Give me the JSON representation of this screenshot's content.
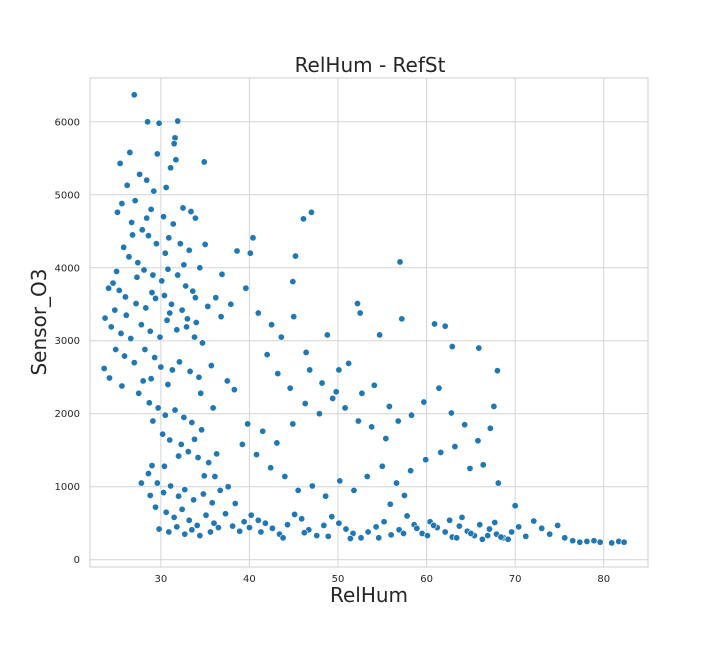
{
  "chart_data": {
    "type": "scatter",
    "title": "RelHum - RefSt",
    "xlabel": "RelHum",
    "ylabel": "Sensor_O3",
    "xlim": [
      22,
      85
    ],
    "ylim": [
      -100,
      6600
    ],
    "xticks": [
      30,
      40,
      50,
      60,
      70,
      80
    ],
    "yticks": [
      0,
      1000,
      2000,
      3000,
      4000,
      5000,
      6000
    ],
    "grid": true,
    "color": "#1f77b4",
    "points": [
      [
        27.0,
        6370
      ],
      [
        28.5,
        6000
      ],
      [
        29.8,
        5980
      ],
      [
        31.9,
        6010
      ],
      [
        31.6,
        5780
      ],
      [
        31.5,
        5700
      ],
      [
        26.5,
        5580
      ],
      [
        25.4,
        5430
      ],
      [
        29.6,
        5560
      ],
      [
        34.9,
        5450
      ],
      [
        27.6,
        5280
      ],
      [
        28.4,
        5200
      ],
      [
        30.6,
        5100
      ],
      [
        31.1,
        5370
      ],
      [
        31.7,
        5480
      ],
      [
        26.2,
        5130
      ],
      [
        29.2,
        5050
      ],
      [
        25.6,
        4880
      ],
      [
        27.1,
        4920
      ],
      [
        28.9,
        4800
      ],
      [
        30.3,
        4700
      ],
      [
        32.5,
        4820
      ],
      [
        33.4,
        4770
      ],
      [
        33.9,
        4680
      ],
      [
        25.1,
        4760
      ],
      [
        26.7,
        4620
      ],
      [
        27.9,
        4520
      ],
      [
        28.6,
        4440
      ],
      [
        29.5,
        4330
      ],
      [
        30.9,
        4410
      ],
      [
        31.4,
        4600
      ],
      [
        32.2,
        4330
      ],
      [
        33.2,
        4240
      ],
      [
        35.0,
        4320
      ],
      [
        34.4,
        4000
      ],
      [
        25.8,
        4280
      ],
      [
        26.4,
        4150
      ],
      [
        27.4,
        4070
      ],
      [
        28.1,
        3970
      ],
      [
        29.1,
        3900
      ],
      [
        30.1,
        3820
      ],
      [
        30.8,
        3980
      ],
      [
        31.9,
        3900
      ],
      [
        32.8,
        3750
      ],
      [
        33.6,
        3680
      ],
      [
        24.1,
        3720
      ],
      [
        24.6,
        3790
      ],
      [
        25.3,
        3690
      ],
      [
        26.0,
        3600
      ],
      [
        27.2,
        3510
      ],
      [
        28.3,
        3450
      ],
      [
        29.4,
        3580
      ],
      [
        30.4,
        3620
      ],
      [
        31.2,
        3500
      ],
      [
        32.4,
        3420
      ],
      [
        33.0,
        3300
      ],
      [
        34.0,
        3250
      ],
      [
        35.3,
        3470
      ],
      [
        36.2,
        3590
      ],
      [
        36.9,
        3910
      ],
      [
        23.7,
        3310
      ],
      [
        24.4,
        3190
      ],
      [
        25.5,
        3100
      ],
      [
        26.6,
        3030
      ],
      [
        27.8,
        3220
      ],
      [
        28.8,
        3130
      ],
      [
        29.9,
        3050
      ],
      [
        30.7,
        3280
      ],
      [
        31.8,
        3150
      ],
      [
        32.9,
        3190
      ],
      [
        33.8,
        3050
      ],
      [
        34.7,
        2970
      ],
      [
        24.9,
        2880
      ],
      [
        25.9,
        2790
      ],
      [
        27.0,
        2700
      ],
      [
        28.2,
        2880
      ],
      [
        29.3,
        2770
      ],
      [
        30.0,
        2640
      ],
      [
        31.3,
        2600
      ],
      [
        32.1,
        2710
      ],
      [
        33.3,
        2580
      ],
      [
        34.3,
        2500
      ],
      [
        35.7,
        2660
      ],
      [
        23.6,
        2620
      ],
      [
        24.2,
        2490
      ],
      [
        25.6,
        2380
      ],
      [
        27.5,
        2280
      ],
      [
        28.7,
        2150
      ],
      [
        29.7,
        2080
      ],
      [
        30.5,
        1980
      ],
      [
        31.6,
        2050
      ],
      [
        32.6,
        1950
      ],
      [
        33.5,
        1880
      ],
      [
        34.6,
        1780
      ],
      [
        28.0,
        2450
      ],
      [
        29.1,
        1900
      ],
      [
        30.2,
        1720
      ],
      [
        31.0,
        1640
      ],
      [
        32.3,
        1580
      ],
      [
        33.1,
        1480
      ],
      [
        34.2,
        1400
      ],
      [
        35.4,
        1330
      ],
      [
        36.3,
        1450
      ],
      [
        28.6,
        1180
      ],
      [
        29.6,
        1050
      ],
      [
        30.3,
        920
      ],
      [
        31.1,
        1010
      ],
      [
        32.0,
        870
      ],
      [
        32.7,
        960
      ],
      [
        33.7,
        820
      ],
      [
        34.8,
        900
      ],
      [
        35.8,
        780
      ],
      [
        36.7,
        950
      ],
      [
        27.8,
        1050
      ],
      [
        28.8,
        880
      ],
      [
        29.4,
        720
      ],
      [
        30.6,
        650
      ],
      [
        31.5,
        580
      ],
      [
        32.4,
        690
      ],
      [
        33.2,
        540
      ],
      [
        34.1,
        470
      ],
      [
        35.1,
        610
      ],
      [
        36.0,
        500
      ],
      [
        37.3,
        630
      ],
      [
        29.8,
        420
      ],
      [
        30.9,
        380
      ],
      [
        31.8,
        450
      ],
      [
        32.7,
        350
      ],
      [
        33.5,
        410
      ],
      [
        34.4,
        330
      ],
      [
        35.6,
        380
      ],
      [
        36.5,
        440
      ],
      [
        38.1,
        460
      ],
      [
        38.9,
        390
      ],
      [
        40.2,
        610
      ],
      [
        41.0,
        540
      ],
      [
        41.8,
        500
      ],
      [
        42.6,
        430
      ],
      [
        43.4,
        350
      ],
      [
        44.3,
        480
      ],
      [
        45.1,
        620
      ],
      [
        45.9,
        560
      ],
      [
        46.7,
        410
      ],
      [
        47.6,
        330
      ],
      [
        48.4,
        470
      ],
      [
        49.3,
        590
      ],
      [
        50.1,
        500
      ],
      [
        50.9,
        420
      ],
      [
        51.7,
        360
      ],
      [
        52.6,
        300
      ],
      [
        53.4,
        380
      ],
      [
        54.3,
        450
      ],
      [
        55.2,
        520
      ],
      [
        56.0,
        340
      ],
      [
        56.9,
        410
      ],
      [
        57.8,
        600
      ],
      [
        58.6,
        480
      ],
      [
        59.5,
        360
      ],
      [
        60.4,
        520
      ],
      [
        61.2,
        440
      ],
      [
        62.1,
        380
      ],
      [
        62.9,
        310
      ],
      [
        63.7,
        460
      ],
      [
        64.6,
        390
      ],
      [
        65.4,
        330
      ],
      [
        66.3,
        280
      ],
      [
        67.1,
        420
      ],
      [
        67.9,
        350
      ],
      [
        68.7,
        300
      ],
      [
        69.6,
        380
      ],
      [
        70.4,
        450
      ],
      [
        71.2,
        320
      ],
      [
        72.1,
        530
      ],
      [
        73.0,
        430
      ],
      [
        73.9,
        350
      ],
      [
        74.8,
        470
      ],
      [
        75.6,
        300
      ],
      [
        76.5,
        260
      ],
      [
        77.3,
        240
      ],
      [
        78.1,
        250
      ],
      [
        78.9,
        260
      ],
      [
        79.6,
        240
      ],
      [
        80.9,
        230
      ],
      [
        81.7,
        250
      ],
      [
        82.3,
        240
      ],
      [
        70.0,
        740
      ],
      [
        68.1,
        1050
      ],
      [
        66.4,
        1300
      ],
      [
        64.9,
        1250
      ],
      [
        63.2,
        1550
      ],
      [
        61.6,
        1470
      ],
      [
        59.9,
        1370
      ],
      [
        58.2,
        1220
      ],
      [
        56.6,
        1050
      ],
      [
        55.0,
        1280
      ],
      [
        53.3,
        1140
      ],
      [
        51.8,
        950
      ],
      [
        50.2,
        1080
      ],
      [
        48.6,
        870
      ],
      [
        47.1,
        1010
      ],
      [
        45.5,
        950
      ],
      [
        44.0,
        1140
      ],
      [
        42.4,
        1260
      ],
      [
        40.8,
        1440
      ],
      [
        39.2,
        1580
      ],
      [
        39.8,
        1860
      ],
      [
        41.5,
        1760
      ],
      [
        43.1,
        1600
      ],
      [
        44.9,
        1860
      ],
      [
        46.3,
        2140
      ],
      [
        47.9,
        2000
      ],
      [
        49.4,
        2210
      ],
      [
        50.8,
        2080
      ],
      [
        52.3,
        1900
      ],
      [
        53.8,
        1820
      ],
      [
        55.4,
        1660
      ],
      [
        56.8,
        1900
      ],
      [
        58.3,
        1980
      ],
      [
        59.7,
        2160
      ],
      [
        61.4,
        2350
      ],
      [
        62.8,
        2010
      ],
      [
        64.3,
        1850
      ],
      [
        65.8,
        1630
      ],
      [
        67.2,
        1800
      ],
      [
        67.6,
        2100
      ],
      [
        68.0,
        2590
      ],
      [
        65.9,
        2900
      ],
      [
        62.9,
        2920
      ],
      [
        62.1,
        3200
      ],
      [
        60.9,
        3230
      ],
      [
        57.2,
        3300
      ],
      [
        54.7,
        3080
      ],
      [
        52.2,
        3510
      ],
      [
        52.5,
        3380
      ],
      [
        50.1,
        2600
      ],
      [
        48.8,
        3080
      ],
      [
        46.4,
        2840
      ],
      [
        45.0,
        3330
      ],
      [
        43.6,
        3050
      ],
      [
        42.5,
        3220
      ],
      [
        41.0,
        3380
      ],
      [
        39.6,
        3720
      ],
      [
        38.6,
        4230
      ],
      [
        40.4,
        4410
      ],
      [
        40.1,
        4200
      ],
      [
        44.9,
        3810
      ],
      [
        45.2,
        4160
      ],
      [
        46.1,
        4670
      ],
      [
        47.0,
        4760
      ],
      [
        57.0,
        4080
      ],
      [
        42.0,
        2810
      ],
      [
        43.2,
        2550
      ],
      [
        44.6,
        2350
      ],
      [
        46.8,
        2600
      ],
      [
        48.2,
        2420
      ],
      [
        49.8,
        2300
      ],
      [
        51.2,
        2690
      ],
      [
        52.7,
        2280
      ],
      [
        54.1,
        2390
      ],
      [
        55.8,
        2100
      ],
      [
        37.5,
        2450
      ],
      [
        38.3,
        2330
      ],
      [
        36.8,
        3330
      ],
      [
        37.9,
        3500
      ],
      [
        30.5,
        4200
      ],
      [
        26.8,
        4450
      ],
      [
        28.4,
        4680
      ],
      [
        32.6,
        4040
      ],
      [
        33.9,
        3590
      ],
      [
        31.0,
        3380
      ],
      [
        29.0,
        3660
      ],
      [
        27.3,
        3870
      ],
      [
        25.0,
        3950
      ],
      [
        24.8,
        3420
      ],
      [
        26.1,
        3350
      ],
      [
        34.5,
        2280
      ],
      [
        35.9,
        2080
      ],
      [
        30.8,
        2400
      ],
      [
        28.9,
        2480
      ],
      [
        33.8,
        1650
      ],
      [
        32.0,
        1420
      ],
      [
        30.4,
        1280
      ],
      [
        29.0,
        1290
      ],
      [
        34.9,
        1150
      ],
      [
        36.1,
        1140
      ],
      [
        37.6,
        1000
      ],
      [
        38.4,
        770
      ],
      [
        39.4,
        520
      ],
      [
        40.0,
        440
      ],
      [
        41.3,
        380
      ],
      [
        43.8,
        300
      ],
      [
        46.2,
        370
      ],
      [
        48.9,
        320
      ],
      [
        51.4,
        290
      ],
      [
        54.6,
        300
      ],
      [
        57.4,
        360
      ],
      [
        60.1,
        330
      ],
      [
        63.4,
        300
      ],
      [
        65.0,
        360
      ],
      [
        66.9,
        330
      ],
      [
        68.4,
        310
      ],
      [
        69.2,
        280
      ],
      [
        58.9,
        430
      ],
      [
        60.8,
        470
      ],
      [
        62.6,
        540
      ],
      [
        64.0,
        580
      ],
      [
        66.0,
        480
      ],
      [
        67.7,
        510
      ],
      [
        55.9,
        760
      ],
      [
        57.5,
        880
      ]
    ]
  }
}
